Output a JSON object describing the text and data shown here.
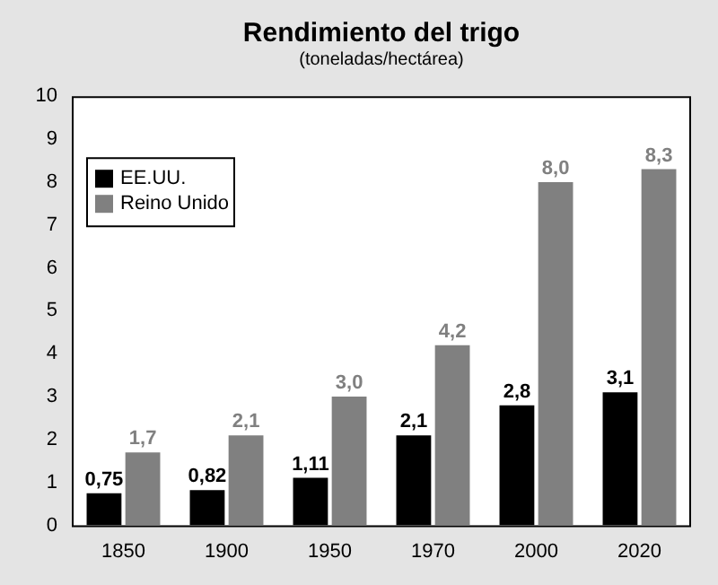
{
  "chart_data": {
    "type": "bar",
    "title": "Rendimiento del trigo",
    "subtitle": "(toneladas/hectárea)",
    "categories": [
      "1850",
      "1900",
      "1950",
      "1970",
      "2000",
      "2020"
    ],
    "series": [
      {
        "name": "EE.UU.",
        "color": "#000000",
        "values": [
          0.75,
          0.82,
          1.11,
          2.1,
          2.8,
          3.1
        ],
        "value_labels": [
          "0,75",
          "0,82",
          "1,11",
          "2,1",
          "2,8",
          "3,1"
        ]
      },
      {
        "name": "Reino Unido",
        "color": "#808080",
        "values": [
          1.7,
          2.1,
          3.0,
          4.2,
          8.0,
          8.3
        ],
        "value_labels": [
          "1,7",
          "2,1",
          "3,0",
          "4,2",
          "8,0",
          "8,3"
        ]
      }
    ],
    "ylim": [
      0,
      10
    ],
    "yticks": [
      0,
      1,
      2,
      3,
      4,
      5,
      6,
      7,
      8,
      9,
      10
    ],
    "legend": "top left"
  }
}
